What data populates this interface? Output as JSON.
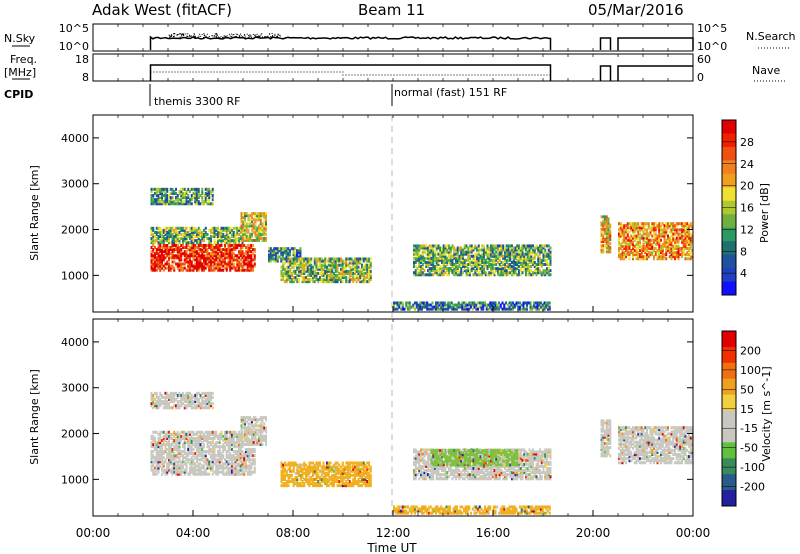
{
  "header": {
    "station": "Adak West (fitACF)",
    "beam": "Beam 11",
    "date": "05/Mar/2016"
  },
  "panels": {
    "nsky_label": "N.Sky",
    "nsky_ticks": [
      "10^5",
      "10^0"
    ],
    "nsearch_label": "N.Search",
    "nsearch_ticks": [
      "10^5",
      "10^0"
    ],
    "freq_label_1": "Freq.",
    "freq_label_2": "[MHz]",
    "freq_ticks": [
      "18",
      "8"
    ],
    "nave_label": "Nave",
    "nave_ticks": [
      "60",
      "0"
    ],
    "cpid_label": "CPID",
    "cpid_modes": [
      {
        "label": "themis 3300 RF",
        "start": 2.3
      },
      {
        "label": "normal (fast) 151 RF",
        "start": 12.0
      }
    ]
  },
  "chart_data": [
    {
      "type": "heatmap",
      "name": "Power",
      "ylabel": "Slant Range [km]",
      "ylim": [
        200,
        4500
      ],
      "yticks": [
        1000,
        2000,
        3000,
        4000
      ],
      "xlim": [
        0,
        24
      ],
      "colorbar": {
        "label": "Power [dB]",
        "ticks": [
          "4",
          "8",
          "12",
          "16",
          "20",
          "24",
          "28"
        ],
        "colors": [
          "#1010ff",
          "#2040c0",
          "#2050a0",
          "#207070",
          "#2a9a60",
          "#70b040",
          "#b0c830",
          "#f0e030",
          "#f0a020",
          "#f08020",
          "#f05010",
          "#f02000",
          "#e00000"
        ]
      },
      "regions": [
        {
          "x": [
            2.3,
            4.8
          ],
          "y": [
            2550,
            2900
          ],
          "level": 0.35
        },
        {
          "x": [
            2.3,
            6.0
          ],
          "y": [
            1700,
            2050
          ],
          "level": 0.4
        },
        {
          "x": [
            2.3,
            6.5
          ],
          "y": [
            1100,
            1650
          ],
          "level": 0.9
        },
        {
          "x": [
            5.9,
            6.9
          ],
          "y": [
            1750,
            2350
          ],
          "level": 0.55
        },
        {
          "x": [
            7.0,
            8.3
          ],
          "y": [
            1300,
            1600
          ],
          "level": 0.3
        },
        {
          "x": [
            7.5,
            11.1
          ],
          "y": [
            850,
            1350
          ],
          "level": 0.45
        },
        {
          "x": [
            12.8,
            18.3
          ],
          "y": [
            1000,
            1650
          ],
          "level": 0.4
        },
        {
          "x": [
            12.0,
            18.3
          ],
          "y": [
            250,
            420
          ],
          "level": 0.25
        },
        {
          "x": [
            20.3,
            20.7
          ],
          "y": [
            1500,
            2300
          ],
          "level": 0.6
        },
        {
          "x": [
            21.0,
            24.0
          ],
          "y": [
            1350,
            2150
          ],
          "level": 0.7
        }
      ]
    },
    {
      "type": "heatmap",
      "name": "Velocity",
      "ylabel": "Slant Range [km]",
      "ylim": [
        200,
        4500
      ],
      "yticks": [
        1000,
        2000,
        3000,
        4000
      ],
      "xlim": [
        0,
        24
      ],
      "xticks": [
        "00:00",
        "04:00",
        "08:00",
        "12:00",
        "16:00",
        "20:00",
        "00:00"
      ],
      "xlabel": "Time UT",
      "colorbar": {
        "label": "Velocity [m s^-1]",
        "ticks": [
          "200",
          "100",
          "50",
          "15",
          "-15",
          "-50",
          "-100",
          "-200"
        ],
        "colors": [
          "#2020a0",
          "#2a5a8a",
          "#3a8a5a",
          "#60c040",
          "#c8c8c0",
          "#c8c8c0",
          "#f0d040",
          "#f0a020",
          "#f07010",
          "#f03000",
          "#e00000"
        ]
      },
      "regions": [
        {
          "x": [
            2.3,
            4.8
          ],
          "y": [
            2550,
            2900
          ],
          "color": "#c8c8c0"
        },
        {
          "x": [
            2.3,
            6.0
          ],
          "y": [
            1700,
            2050
          ],
          "color": "#c8c8c0"
        },
        {
          "x": [
            2.3,
            6.5
          ],
          "y": [
            1100,
            1650
          ],
          "color": "#c8c8c0"
        },
        {
          "x": [
            5.9,
            6.9
          ],
          "y": [
            1750,
            2350
          ],
          "color": "#c8c8c0"
        },
        {
          "x": [
            7.5,
            11.1
          ],
          "y": [
            850,
            1350
          ],
          "color": "#f0b020"
        },
        {
          "x": [
            12.8,
            18.3
          ],
          "y": [
            1000,
            1650
          ],
          "color": "#c8c8c0"
        },
        {
          "x": [
            13.5,
            17.0
          ],
          "y": [
            1300,
            1650
          ],
          "color": "#80c040"
        },
        {
          "x": [
            12.0,
            18.3
          ],
          "y": [
            250,
            420
          ],
          "color": "#f0b020"
        },
        {
          "x": [
            20.3,
            20.7
          ],
          "y": [
            1500,
            2300
          ],
          "color": "#c8c8c0"
        },
        {
          "x": [
            21.0,
            24.0
          ],
          "y": [
            1350,
            2150
          ],
          "color": "#c8c8c0"
        }
      ]
    }
  ]
}
